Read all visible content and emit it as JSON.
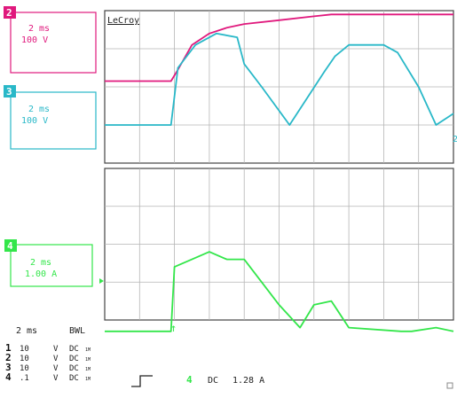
{
  "brand": "LeCroy",
  "colors": {
    "ch2": "#e0197d",
    "ch3": "#29b8c8",
    "ch4": "#33e64a",
    "grid": "#b5b5b5",
    "frame": "#444444"
  },
  "channels": [
    {
      "number": "2",
      "timebase": "2 ms",
      "scale": "100 V",
      "color": "#e0197d"
    },
    {
      "number": "3",
      "timebase": "2 ms",
      "scale": "100 V",
      "color": "#29b8c8"
    },
    {
      "number": "4",
      "timebase": "2 ms",
      "scale": "1.00 A",
      "color": "#33e64a"
    }
  ],
  "status": {
    "timebase": "2 ms",
    "bwl": "BWL",
    "rows": [
      {
        "num": "1",
        "volts": "10",
        "unit": "V",
        "coupling": "DC"
      },
      {
        "num": "2",
        "volts": "10",
        "unit": "V",
        "coupling": "DC"
      },
      {
        "num": "3",
        "volts": "10",
        "unit": "V",
        "coupling": "DC"
      },
      {
        "num": "4",
        "volts": ".1",
        "unit": "V",
        "coupling": "DC"
      }
    ],
    "probe_mark": "1M",
    "trigger_channel": "4",
    "trigger_coupling": "DC",
    "trigger_level": "1.28 A"
  },
  "chart_data": {
    "type": "line",
    "xlabel": "",
    "ylabel": "",
    "x_divisions": 10,
    "time_per_div_ms": 2,
    "grid": true,
    "series": [
      {
        "channel": "2",
        "color": "#e0197d",
        "x": [
          0,
          1.9,
          2.1,
          2.5,
          3.0,
          3.5,
          4.0,
          5.0,
          6.0,
          6.5,
          7.5,
          8.5,
          10.0
        ],
        "y": [
          2.15,
          2.15,
          2.45,
          3.1,
          3.4,
          3.55,
          3.65,
          3.75,
          3.85,
          3.9,
          3.9,
          3.9,
          3.9
        ]
      },
      {
        "channel": "3",
        "color": "#29b8c8",
        "x": [
          0,
          1.8,
          1.9,
          2.1,
          2.6,
          3.2,
          3.8,
          4.0,
          4.5,
          5.3,
          6.3,
          6.6,
          7.0,
          8.0,
          8.4,
          9.0,
          9.5,
          10.0
        ],
        "y": [
          1.0,
          1.0,
          1.0,
          2.5,
          3.1,
          3.4,
          3.3,
          2.6,
          2.0,
          1.0,
          2.4,
          2.8,
          3.1,
          3.1,
          2.9,
          2.0,
          1.0,
          1.3
        ]
      },
      {
        "channel": "4",
        "color": "#33e64a",
        "x": [
          0,
          1.9,
          2.0,
          2.5,
          3.0,
          3.5,
          4.0,
          4.5,
          5.0,
          5.6,
          6.0,
          6.5,
          7.0,
          8.5,
          8.8,
          9.5,
          10.0
        ],
        "y": [
          -0.3,
          -0.3,
          1.4,
          1.6,
          1.8,
          1.6,
          1.6,
          1.0,
          0.4,
          -0.2,
          0.4,
          0.5,
          -0.2,
          -0.3,
          -0.3,
          -0.2,
          -0.3
        ]
      }
    ]
  }
}
